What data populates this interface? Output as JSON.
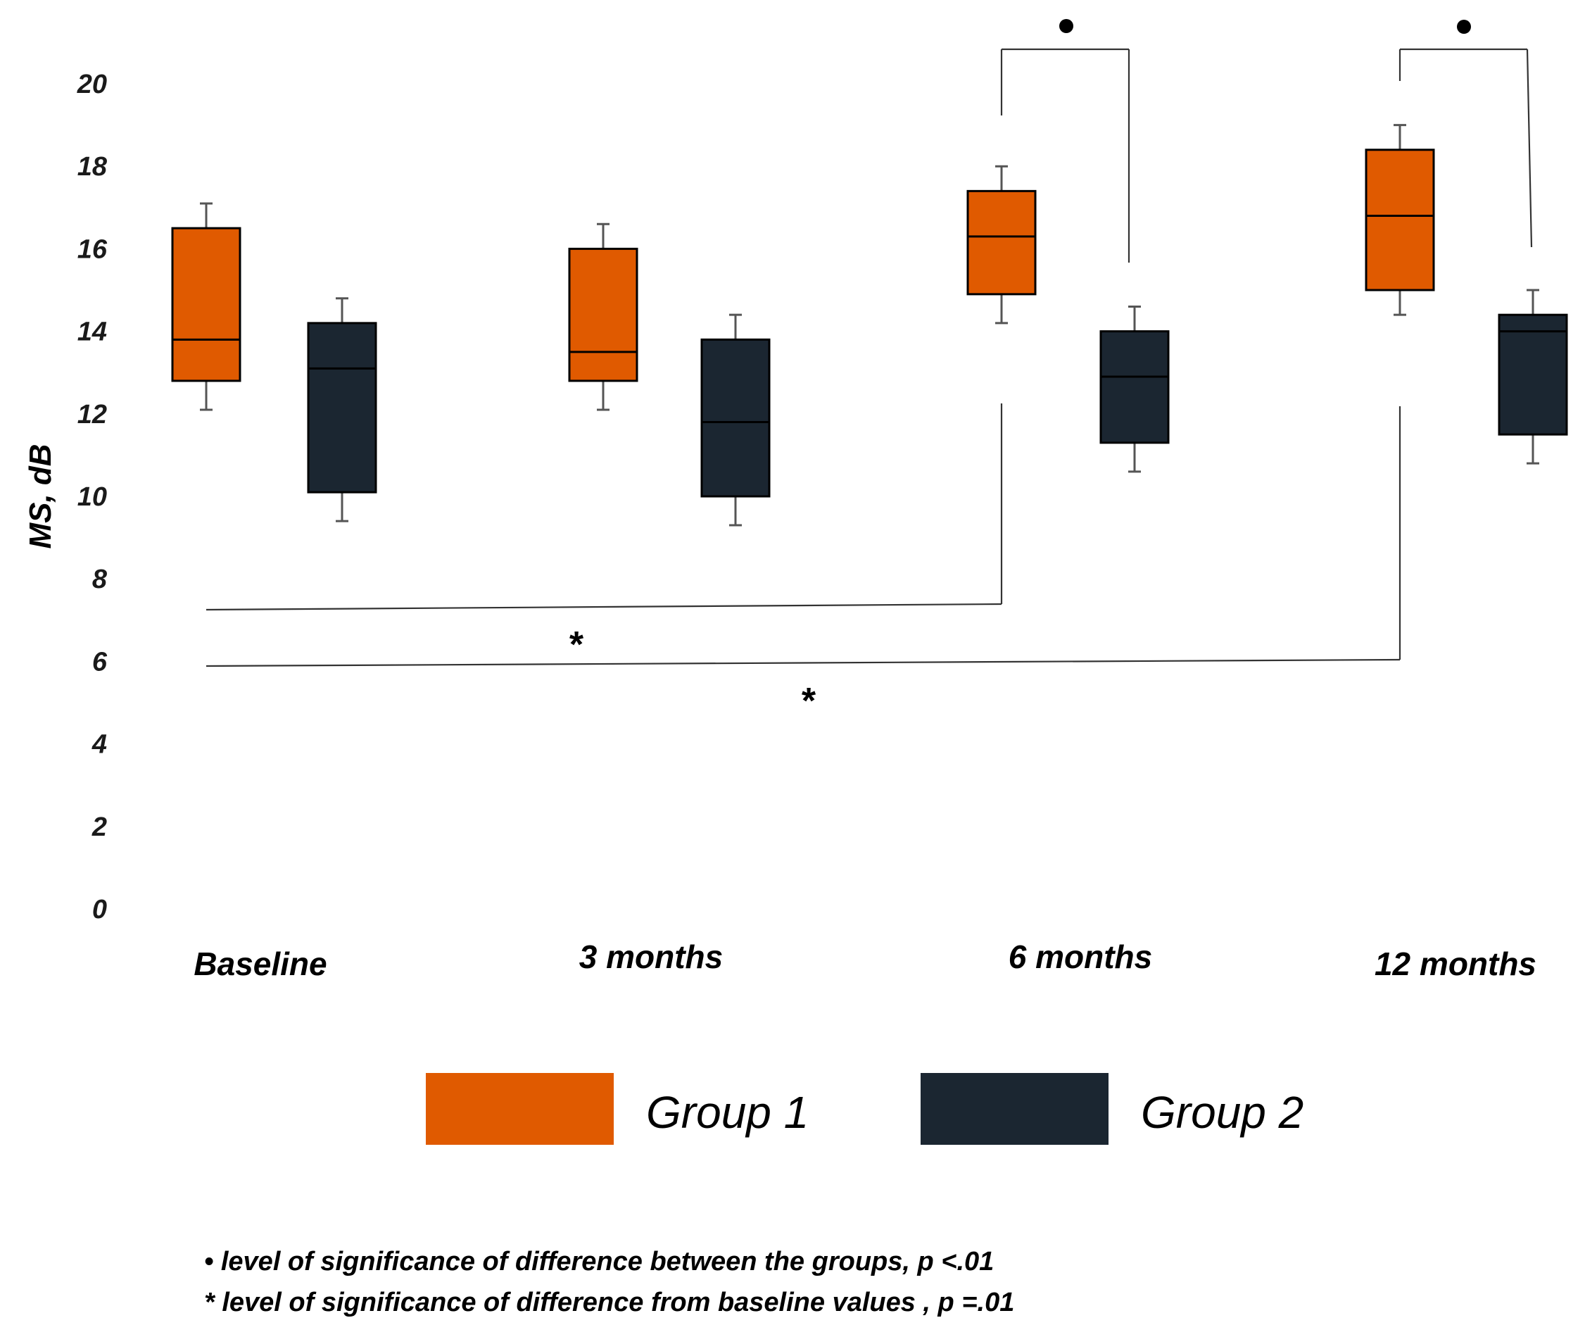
{
  "chart_data": {
    "type": "box",
    "title": "",
    "xlabel": "",
    "ylabel": "MS, dB",
    "ylim": [
      0,
      20
    ],
    "yticks": [
      "0",
      "2",
      "4",
      "6",
      "8",
      "10",
      "12",
      "14",
      "16",
      "18",
      "20"
    ],
    "grid": false,
    "categories": [
      "Baseline",
      "3 months",
      "6 months",
      "12 months"
    ],
    "series": [
      {
        "name": "Group 1",
        "color": "#E05A00",
        "boxes": [
          {
            "min": 12.1,
            "q1": 12.8,
            "median": 13.8,
            "q3": 16.5,
            "max": 17.1
          },
          {
            "min": 12.1,
            "q1": 12.8,
            "median": 13.5,
            "q3": 16.0,
            "max": 16.6
          },
          {
            "min": 14.2,
            "q1": 14.9,
            "median": 16.3,
            "q3": 17.4,
            "max": 18.0
          },
          {
            "min": 14.4,
            "q1": 15.0,
            "median": 16.8,
            "q3": 18.4,
            "max": 19.0
          }
        ]
      },
      {
        "name": "Group 2",
        "color": "#1B2631",
        "boxes": [
          {
            "min": 9.4,
            "q1": 10.1,
            "median": 13.1,
            "q3": 14.2,
            "max": 14.8
          },
          {
            "min": 9.3,
            "q1": 10.0,
            "median": 11.8,
            "q3": 13.8,
            "max": 14.4
          },
          {
            "min": 10.6,
            "q1": 11.3,
            "median": 12.9,
            "q3": 14.0,
            "max": 14.6
          },
          {
            "min": 10.8,
            "q1": 11.5,
            "median": 14.0,
            "q3": 14.4,
            "max": 15.0
          }
        ]
      }
    ],
    "annotations": [
      {
        "type": "between-groups",
        "category": "6 months",
        "marker": "•"
      },
      {
        "type": "between-groups",
        "category": "12 months",
        "marker": "•"
      },
      {
        "type": "from-baseline",
        "from": "Baseline",
        "to": "6 months",
        "marker": "*"
      },
      {
        "type": "from-baseline",
        "from": "Baseline",
        "to": "12 months",
        "marker": "*"
      }
    ],
    "footnotes": [
      "•  level of significance of difference between the groups, p <.01",
      "*  level of significance of difference from baseline values , p =.01"
    ],
    "legend_position": "bottom"
  }
}
